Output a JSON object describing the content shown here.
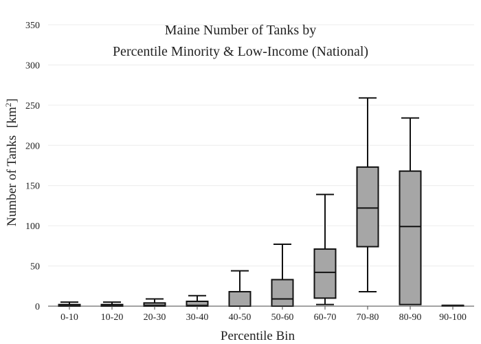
{
  "chart_data": {
    "type": "box",
    "title_line1": "Maine Number of Tanks by",
    "title_line2": "Percentile Minority & Low-Income (National)",
    "xlabel": "Percentile Bin",
    "ylabel": "Number of Tanks",
    "ylabel_unit": "km",
    "ylabel_unit_sup": "2",
    "ylim": [
      0,
      350
    ],
    "yticks": [
      0,
      50,
      100,
      150,
      200,
      250,
      300,
      350
    ],
    "categories": [
      "0-10",
      "10-20",
      "20-30",
      "30-40",
      "40-50",
      "50-60",
      "60-70",
      "70-80",
      "80-90",
      "90-100"
    ],
    "boxes": [
      {
        "min": 0,
        "q1": 0,
        "median": 1,
        "q3": 2,
        "max": 5
      },
      {
        "min": 0,
        "q1": 0,
        "median": 1,
        "q3": 2,
        "max": 5
      },
      {
        "min": 0,
        "q1": 0,
        "median": 1,
        "q3": 4,
        "max": 9
      },
      {
        "min": 0,
        "q1": 0,
        "median": 1,
        "q3": 6,
        "max": 13
      },
      {
        "min": 0,
        "q1": 0,
        "median": 0,
        "q3": 18,
        "max": 44
      },
      {
        "min": 0,
        "q1": 0,
        "median": 9,
        "q3": 33,
        "max": 77
      },
      {
        "min": 2,
        "q1": 10,
        "median": 42,
        "q3": 71,
        "max": 139
      },
      {
        "min": 18,
        "q1": 74,
        "median": 122,
        "q3": 173,
        "max": 259
      },
      {
        "min": 2,
        "q1": 2,
        "median": 99,
        "q3": 168,
        "max": 234
      },
      {
        "min": 1,
        "q1": 1,
        "median": 1,
        "q3": 1,
        "max": 1
      }
    ],
    "grid": true,
    "box_color": "#a6a6a6"
  }
}
